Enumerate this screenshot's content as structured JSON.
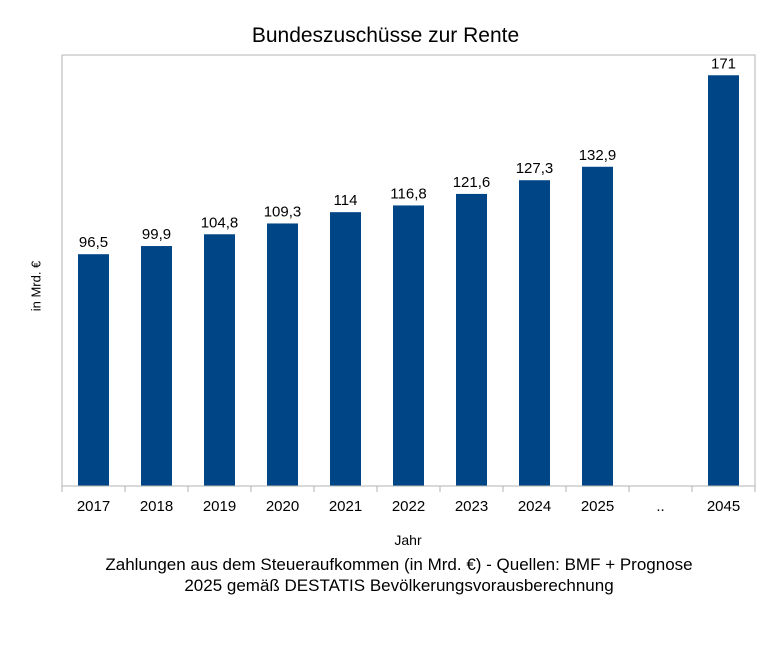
{
  "chart_data": {
    "type": "bar",
    "title": "Bundeszuschüsse zur Rente",
    "xlabel": "Jahr",
    "ylabel": "in Mrd. €",
    "categories": [
      "2017",
      "2018",
      "2019",
      "2020",
      "2021",
      "2022",
      "2023",
      "2024",
      "2025",
      "..",
      "2045"
    ],
    "values": [
      96.5,
      99.9,
      104.8,
      109.3,
      114,
      116.8,
      121.6,
      127.3,
      132.9,
      null,
      171
    ],
    "value_labels": [
      "96,5",
      "99,9",
      "104,8",
      "109,3",
      "114",
      "116,8",
      "121,6",
      "127,3",
      "132,9",
      "",
      "171"
    ],
    "ylim": [
      0,
      180
    ],
    "bar_color": "#004586",
    "grid": false,
    "legend": "none"
  },
  "caption": {
    "line1": "Zahlungen aus dem Steueraufkommen (in Mrd. €) - Quellen: BMF + Prognose",
    "line2": "2025 gemäß DESTATIS Bevölkerungsvorausberechnung"
  }
}
